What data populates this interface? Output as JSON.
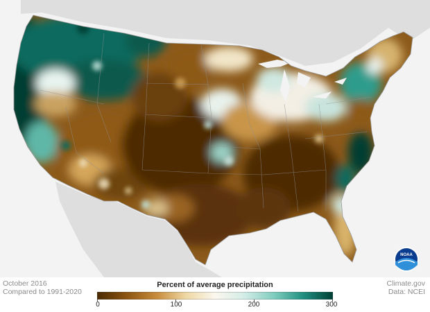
{
  "meta": {
    "period": "October 2016",
    "baseline": "Compared to 1991-2020",
    "credit_site": "Climate.gov",
    "credit_data": "Data: NCEI"
  },
  "logo": {
    "text": "NOAA",
    "icon": "noaa-logo-icon"
  },
  "legend": {
    "title": "Percent of average precipitation",
    "ticks": [
      "0",
      "100",
      "200",
      "300"
    ],
    "range": [
      0,
      300
    ],
    "gradient": [
      "#4a2a02",
      "#8b5410",
      "#c68a3a",
      "#eed7a2",
      "#fbf7ee",
      "#d3ece6",
      "#7fcdbf",
      "#1f8f80",
      "#003f35"
    ]
  },
  "map": {
    "dry_color": "#7a4a10",
    "very_dry_color": "#4e2c05",
    "wet_color": "#0d6b5e",
    "very_wet_color": "#003c33",
    "land_outside_color": "#dcdcdc",
    "water_color": "#f3f3f3"
  }
}
